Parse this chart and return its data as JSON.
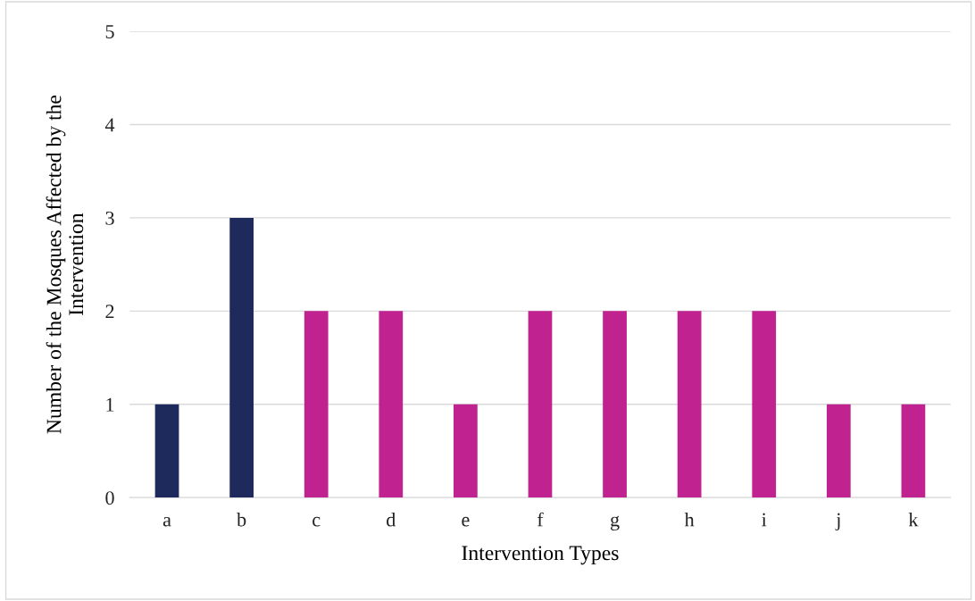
{
  "chart_data": {
    "type": "bar",
    "xlabel": "Intervention Types",
    "ylabel": "Number of the Mosques Affected by the\nIntervention",
    "categories": [
      "a",
      "b",
      "c",
      "d",
      "e",
      "f",
      "g",
      "h",
      "i",
      "j",
      "k"
    ],
    "values": [
      1,
      3,
      2,
      2,
      1,
      2,
      2,
      2,
      2,
      1,
      1
    ],
    "colors": [
      "#1f2a5c",
      "#1f2a5c",
      "#c0238f",
      "#c0238f",
      "#c0238f",
      "#c0238f",
      "#c0238f",
      "#c0238f",
      "#c0238f",
      "#c0238f",
      "#c0238f"
    ],
    "ylim": [
      0,
      5
    ],
    "yticks": [
      0,
      1,
      2,
      3,
      4,
      5
    ],
    "grid": "y",
    "legend": false
  }
}
